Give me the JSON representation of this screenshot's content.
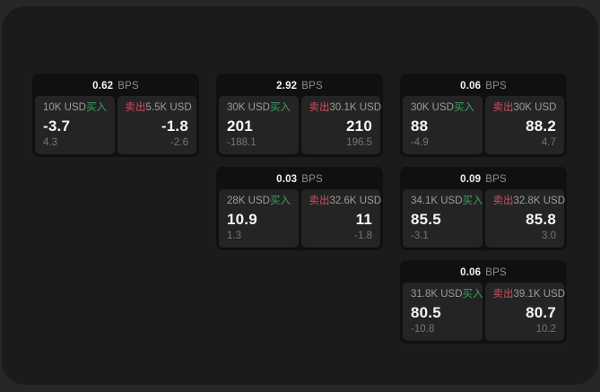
{
  "labels": {
    "bps_suffix": "BPS",
    "buy": "买入",
    "sell": "卖出"
  },
  "colors": {
    "buy": "#35a45f",
    "sell": "#cc4f63",
    "background": "#1b1b1b",
    "card": "#101010",
    "pane": "#242424"
  },
  "cards": [
    {
      "bps": "0.62",
      "buy": {
        "amount": "10K USD",
        "value": "-3.7",
        "sub": "4.3"
      },
      "sell": {
        "amount": "5.5K USD",
        "value": "-1.8",
        "sub": "-2.6"
      }
    },
    {
      "bps": "2.92",
      "buy": {
        "amount": "30K USD",
        "value": "201",
        "sub": "-188.1"
      },
      "sell": {
        "amount": "30.1K USD",
        "value": "210",
        "sub": "196.5"
      }
    },
    {
      "bps": "0.06",
      "buy": {
        "amount": "30K USD",
        "value": "88",
        "sub": "-4.9"
      },
      "sell": {
        "amount": "30K USD",
        "value": "88.2",
        "sub": "4.7"
      }
    },
    {
      "bps": "0.03",
      "buy": {
        "amount": "28K USD",
        "value": "10.9",
        "sub": "1.3"
      },
      "sell": {
        "amount": "32.6K USD",
        "value": "11",
        "sub": "-1.8"
      }
    },
    {
      "bps": "0.09",
      "buy": {
        "amount": "34.1K USD",
        "value": "85.5",
        "sub": "-3.1"
      },
      "sell": {
        "amount": "32.8K USD",
        "value": "85.8",
        "sub": "3.0"
      }
    },
    {
      "bps": "0.06",
      "buy": {
        "amount": "31.8K USD",
        "value": "80.5",
        "sub": "-10.8"
      },
      "sell": {
        "amount": "39.1K USD",
        "value": "80.7",
        "sub": "10.2"
      }
    }
  ]
}
